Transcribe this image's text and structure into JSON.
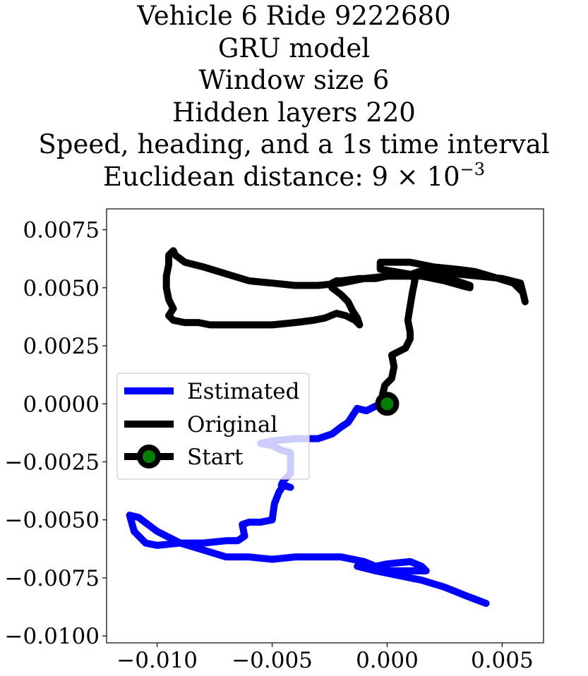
{
  "title": {
    "line1": "Vehicle 6 Ride 9222680",
    "line2": "GRU model",
    "line3": "Window size 6",
    "line4": "Hidden layers 220",
    "line5": "Speed, heading, and a 1s time interval",
    "line6_prefix": "Euclidean distance: 9 × 10",
    "line6_exponent": "−3"
  },
  "legend": {
    "position": "center-left",
    "entries": [
      {
        "label": "Estimated",
        "color": "#0000ff"
      },
      {
        "label": "Original",
        "color": "#000000"
      },
      {
        "label": "Start",
        "color": "#000000",
        "marker_color": "#008000"
      }
    ]
  },
  "chart_data": {
    "type": "line",
    "xlim": [
      -0.0122,
      0.0068
    ],
    "ylim": [
      -0.0103,
      0.0084
    ],
    "grid": false,
    "x_ticks": [
      -0.01,
      -0.005,
      0.0,
      0.005
    ],
    "x_tick_labels": [
      "−0.010",
      "−0.005",
      "0.000",
      "0.005"
    ],
    "y_ticks": [
      0.0075,
      0.005,
      0.0025,
      0.0,
      -0.0025,
      -0.005,
      -0.0075,
      -0.01
    ],
    "y_tick_labels": [
      "0.0075",
      "0.0050",
      "0.0025",
      "0.0000",
      "−0.0025",
      "−0.0050",
      "−0.0075",
      "−0.0100"
    ],
    "series": [
      {
        "name": "Original",
        "color": "#000000",
        "points": [
          [
            0.0,
            0.0
          ],
          [
            -0.0002,
            0.0004
          ],
          [
            -0.0001,
            0.0008
          ],
          [
            0.0002,
            0.0011
          ],
          [
            0.0003,
            0.0016
          ],
          [
            0.0002,
            0.0021
          ],
          [
            0.0008,
            0.0024
          ],
          [
            0.001,
            0.0028
          ],
          [
            0.001,
            0.0031
          ],
          [
            0.0009,
            0.0036
          ],
          [
            0.001,
            0.0042
          ],
          [
            0.0011,
            0.0048
          ],
          [
            0.0012,
            0.0053
          ],
          [
            0.0011,
            0.0056
          ],
          [
            0.0014,
            0.0057
          ],
          [
            0.002,
            0.0057
          ],
          [
            0.003,
            0.0056
          ],
          [
            0.004,
            0.0055
          ],
          [
            0.005,
            0.0054
          ],
          [
            0.0058,
            0.0052
          ],
          [
            0.0059,
            0.0048
          ],
          [
            0.006,
            0.0044
          ],
          [
            0.0059,
            0.0048
          ],
          [
            0.0055,
            0.0052
          ],
          [
            0.0045,
            0.0055
          ],
          [
            0.0038,
            0.0057
          ],
          [
            0.003,
            0.0058
          ],
          [
            0.002,
            0.0059
          ],
          [
            0.001,
            0.0061
          ],
          [
            0.0002,
            0.0061
          ],
          [
            -0.0003,
            0.0061
          ],
          [
            -0.0003,
            0.0058
          ],
          [
            0.0003,
            0.0057
          ],
          [
            0.0015,
            0.0055
          ],
          [
            0.0025,
            0.0053
          ],
          [
            0.0032,
            0.0051
          ],
          [
            0.0036,
            0.005
          ],
          [
            0.0036,
            0.0051
          ],
          [
            0.003,
            0.0053
          ],
          [
            0.002,
            0.0055
          ],
          [
            0.0012,
            0.0055
          ],
          [
            0.0005,
            0.0055
          ],
          [
            0.0,
            0.0055
          ],
          [
            -0.0005,
            0.0054
          ],
          [
            -0.0012,
            0.0054
          ],
          [
            -0.002,
            0.0053
          ],
          [
            -0.0022,
            0.0053
          ],
          [
            -0.0024,
            0.0052
          ],
          [
            -0.0024,
            0.005
          ],
          [
            -0.002,
            0.0047
          ],
          [
            -0.0017,
            0.0044
          ],
          [
            -0.0015,
            0.004
          ],
          [
            -0.0013,
            0.0037
          ],
          [
            -0.0012,
            0.0034
          ],
          [
            -0.0014,
            0.0036
          ],
          [
            -0.0018,
            0.0038
          ],
          [
            -0.0022,
            0.0039
          ],
          [
            -0.0027,
            0.0037
          ],
          [
            -0.0032,
            0.0036
          ],
          [
            -0.004,
            0.0035
          ],
          [
            -0.005,
            0.0034
          ],
          [
            -0.006,
            0.0034
          ],
          [
            -0.007,
            0.0034
          ],
          [
            -0.0077,
            0.0034
          ],
          [
            -0.0082,
            0.0035
          ],
          [
            -0.0088,
            0.0035
          ],
          [
            -0.0093,
            0.0036
          ],
          [
            -0.0095,
            0.0038
          ],
          [
            -0.0093,
            0.0041
          ],
          [
            -0.0095,
            0.0045
          ],
          [
            -0.0096,
            0.005
          ],
          [
            -0.0096,
            0.0055
          ],
          [
            -0.0095,
            0.006
          ],
          [
            -0.0095,
            0.0064
          ],
          [
            -0.0093,
            0.0066
          ],
          [
            -0.0092,
            0.0064
          ],
          [
            -0.0088,
            0.0061
          ],
          [
            -0.008,
            0.0059
          ],
          [
            -0.007,
            0.0056
          ],
          [
            -0.006,
            0.0053
          ],
          [
            -0.005,
            0.0052
          ],
          [
            -0.004,
            0.0051
          ],
          [
            -0.003,
            0.0051
          ],
          [
            -0.002,
            0.0052
          ],
          [
            -0.001,
            0.0054
          ],
          [
            0.0,
            0.0055
          ]
        ]
      },
      {
        "name": "Estimated",
        "color": "#0000ff",
        "points": [
          [
            0.0,
            0.0
          ],
          [
            -0.0005,
            -0.0001
          ],
          [
            -0.0009,
            -0.0003
          ],
          [
            -0.0013,
            -0.0002
          ],
          [
            -0.0015,
            -0.0005
          ],
          [
            -0.0017,
            -0.0008
          ],
          [
            -0.002,
            -0.001
          ],
          [
            -0.0024,
            -0.0013
          ],
          [
            -0.003,
            -0.0015
          ],
          [
            -0.004,
            -0.0015
          ],
          [
            -0.005,
            -0.0016
          ],
          [
            -0.0055,
            -0.0017
          ],
          [
            -0.005,
            -0.0018
          ],
          [
            -0.0046,
            -0.002
          ],
          [
            -0.0042,
            -0.0021
          ],
          [
            -0.0042,
            -0.0026
          ],
          [
            -0.0042,
            -0.003
          ],
          [
            -0.0045,
            -0.0033
          ],
          [
            -0.0046,
            -0.0035
          ],
          [
            -0.0042,
            -0.0036
          ],
          [
            -0.0045,
            -0.0035
          ],
          [
            -0.0047,
            -0.0038
          ],
          [
            -0.0049,
            -0.0043
          ],
          [
            -0.005,
            -0.005
          ],
          [
            -0.0055,
            -0.0051
          ],
          [
            -0.006,
            -0.0051
          ],
          [
            -0.0063,
            -0.0052
          ],
          [
            -0.0062,
            -0.0057
          ],
          [
            -0.0065,
            -0.0059
          ],
          [
            -0.007,
            -0.0059
          ],
          [
            -0.008,
            -0.006
          ],
          [
            -0.009,
            -0.006
          ],
          [
            -0.01,
            -0.0061
          ],
          [
            -0.0105,
            -0.006
          ],
          [
            -0.0107,
            -0.0058
          ],
          [
            -0.011,
            -0.0055
          ],
          [
            -0.0112,
            -0.0048
          ],
          [
            -0.0108,
            -0.0049
          ],
          [
            -0.0104,
            -0.0052
          ],
          [
            -0.01,
            -0.0055
          ],
          [
            -0.009,
            -0.006
          ],
          [
            -0.008,
            -0.0063
          ],
          [
            -0.007,
            -0.0066
          ],
          [
            -0.006,
            -0.0066
          ],
          [
            -0.005,
            -0.0067
          ],
          [
            -0.004,
            -0.0066
          ],
          [
            -0.003,
            -0.0066
          ],
          [
            -0.002,
            -0.0066
          ],
          [
            -0.001,
            -0.0068
          ],
          [
            -0.0005,
            -0.007
          ],
          [
            0.0,
            -0.0069
          ],
          [
            0.001,
            -0.0068
          ],
          [
            0.0015,
            -0.007
          ],
          [
            0.0017,
            -0.0072
          ],
          [
            0.001,
            -0.0072
          ],
          [
            0.0,
            -0.0072
          ],
          [
            -0.001,
            -0.007
          ],
          [
            -0.0013,
            -0.007
          ],
          [
            -0.0005,
            -0.0072
          ],
          [
            0.0005,
            -0.0074
          ],
          [
            0.0015,
            -0.0076
          ],
          [
            0.0025,
            -0.0079
          ],
          [
            0.0035,
            -0.0083
          ],
          [
            0.0043,
            -0.0086
          ]
        ]
      }
    ],
    "start_point": [
      0.0,
      0.0
    ]
  }
}
